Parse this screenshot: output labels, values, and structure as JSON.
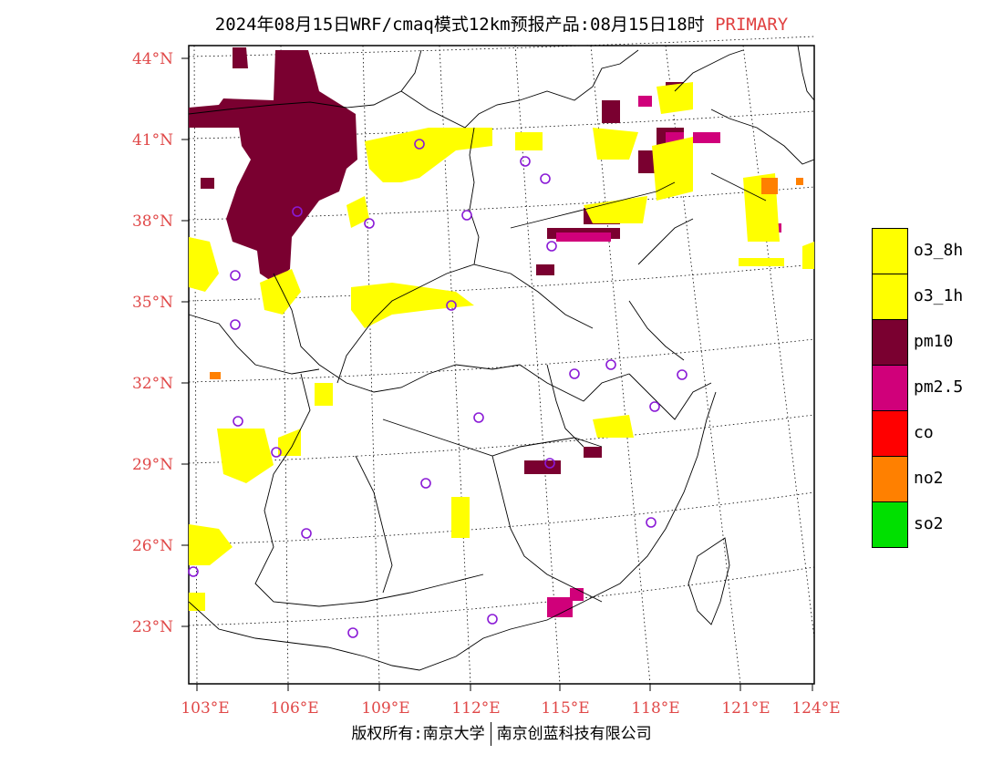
{
  "title": {
    "main": "2024年08月15日WRF/cmaq模式12km预报产品:08月15日18时",
    "tag": "PRIMARY"
  },
  "axes": {
    "lat_labels": [
      "44°N",
      "41°N",
      "38°N",
      "35°N",
      "32°N",
      "29°N",
      "26°N",
      "23°N"
    ],
    "lon_labels": [
      "103°E",
      "106°E",
      "109°E",
      "112°E",
      "115°E",
      "118°E",
      "121°E",
      "124°E"
    ]
  },
  "legend": [
    {
      "label": "o3_8h",
      "color": "#ffff00"
    },
    {
      "label": "o3_1h",
      "color": "#ffff00"
    },
    {
      "label": "pm10",
      "color": "#7a0030"
    },
    {
      "label": "pm2.5",
      "color": "#d0007a"
    },
    {
      "label": "co",
      "color": "#ff0000"
    },
    {
      "label": "no2",
      "color": "#ff8000"
    },
    {
      "label": "so2",
      "color": "#00e000"
    }
  ],
  "footer": {
    "left": "版权所有:南京大学",
    "right": "南京创蓝科技有限公司"
  }
}
